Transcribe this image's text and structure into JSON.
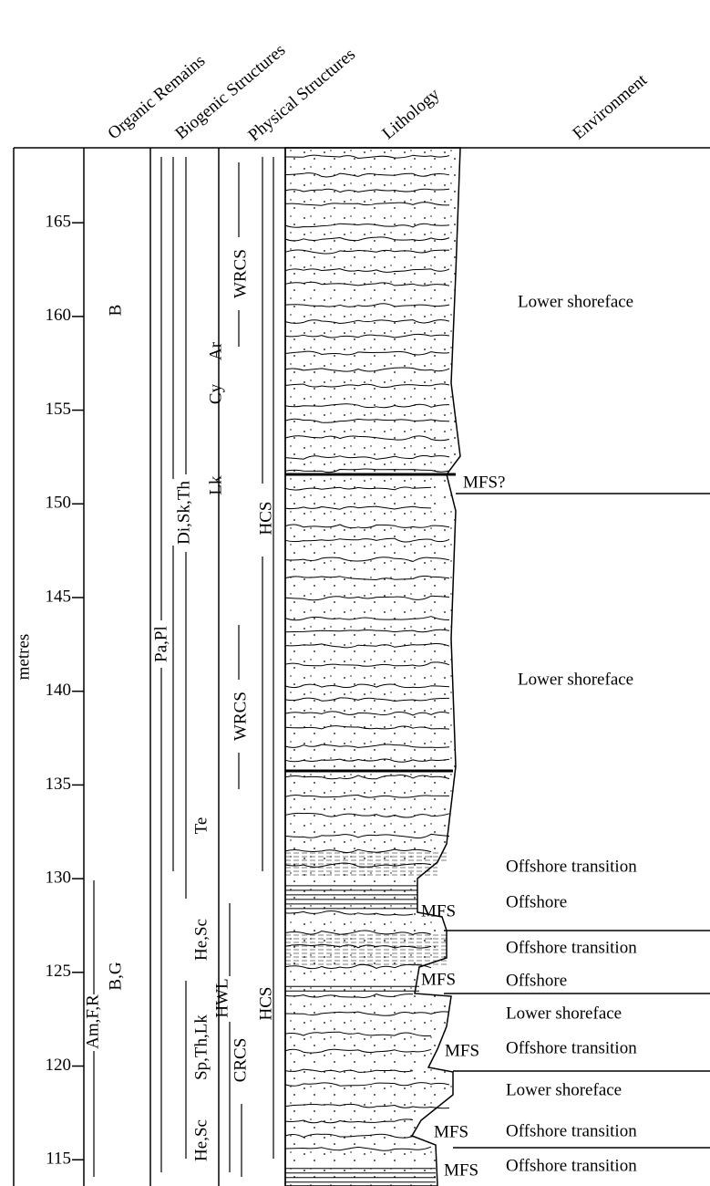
{
  "column_headers": [
    "Organic Remains",
    "Biogenic Structures",
    "Physical Structures",
    "Lithology",
    "Environment"
  ],
  "axis": {
    "label": "metres",
    "ylim": [
      113.6,
      169
    ],
    "ticks": [
      115,
      120,
      125,
      130,
      135,
      140,
      145,
      150,
      155,
      160,
      165
    ]
  },
  "organic_remains": [
    "B",
    "B,G",
    "Am,F,R"
  ],
  "biogenic_structures": [
    "Ar",
    "Cy",
    "Lk",
    "Di,Sk,Th",
    "Pa,Pl",
    "Te",
    "He,Sc",
    "Sp,Th,Lk",
    "He,Sc"
  ],
  "physical_structures": [
    "WRCS",
    "HCS",
    "WRCS",
    "HWL",
    "HCS",
    "CRCS"
  ],
  "environment": {
    "intervals": [
      "Lower shoreface",
      "Lower shoreface",
      "Offshore transition",
      "Offshore",
      "Offshore transition",
      "Offshore",
      "Lower shoreface",
      "Offshore transition",
      "Lower shoreface",
      "Offshore transition",
      "Offshore transition"
    ],
    "surfaces": [
      "MFS?",
      "MFS",
      "MFS",
      "MFS",
      "MFS",
      "MFS"
    ]
  }
}
